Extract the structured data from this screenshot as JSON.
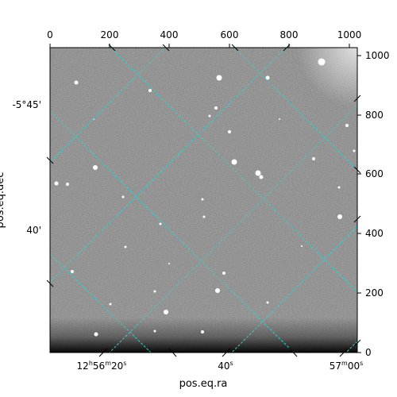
{
  "figure": {
    "x_axis_label": "pos.eq.ra",
    "y_axis_label": "pos.eq.dec",
    "top_ticks": [
      "0",
      "200",
      "400",
      "600",
      "800",
      "1000"
    ],
    "right_ticks": [
      "0",
      "200",
      "400",
      "600",
      "800",
      "1000"
    ],
    "ra_ticks": [
      {
        "h": "12",
        "hs": "h",
        "m": "56",
        "ms": "m",
        "s": "20",
        "ss": "s"
      },
      {
        "h": "",
        "hs": "",
        "m": "",
        "ms": "",
        "s": "40",
        "ss": "s"
      },
      {
        "h": "",
        "hs": "",
        "m": "57",
        "ms": "m",
        "s": "00",
        "ss": "s"
      }
    ],
    "dec_ticks": [
      "-5°45'",
      "40'"
    ],
    "colors": {
      "grid": "#2ad4cc",
      "frame": "#000000",
      "image_background": "#7c7c7c"
    }
  }
}
